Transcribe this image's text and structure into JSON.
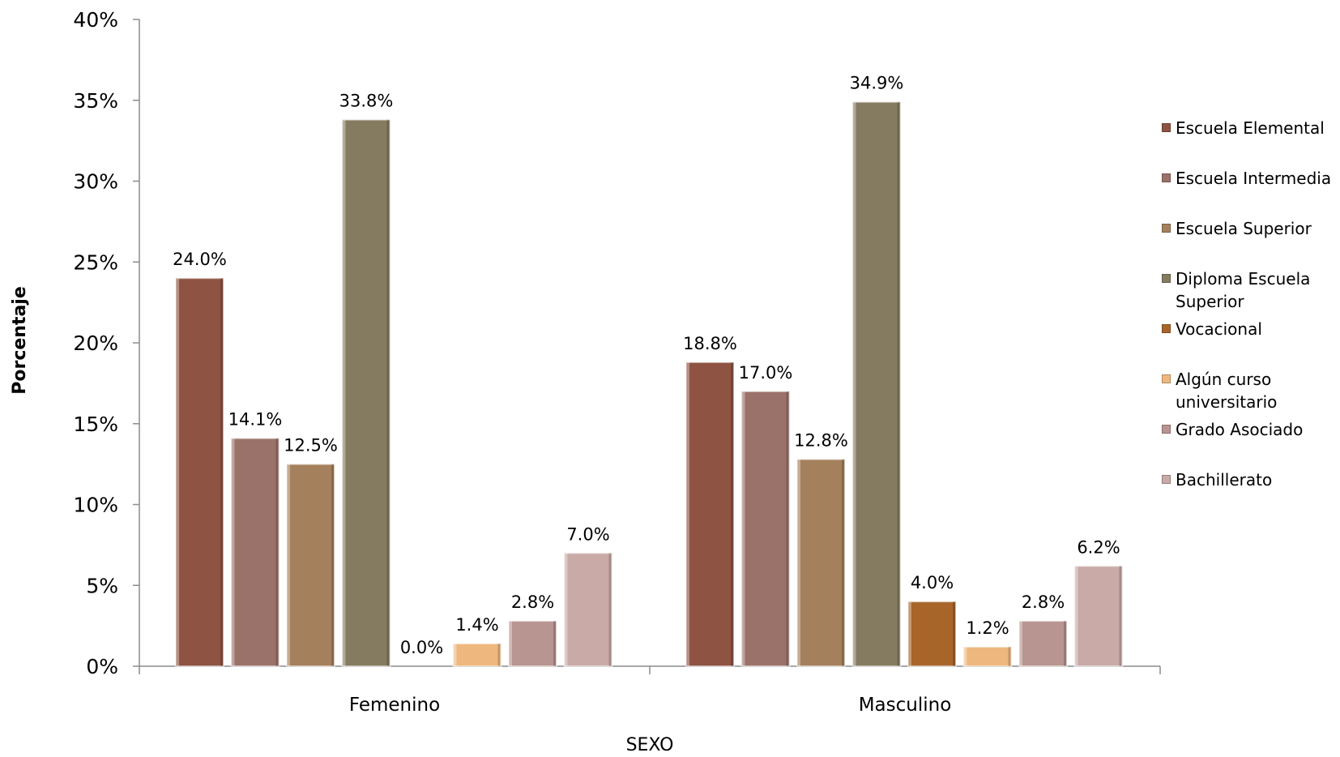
{
  "chart_data": {
    "type": "bar",
    "categories": [
      "Femenino",
      "Masculino"
    ],
    "series": [
      {
        "name": "Escuela Elemental",
        "color": "#8e5342",
        "values": [
          24.0,
          18.8
        ],
        "labels": [
          "24.0%",
          "18.8%"
        ]
      },
      {
        "name": "Escuela Intermedia",
        "color": "#9a7269",
        "values": [
          14.1,
          17.0
        ],
        "labels": [
          "14.1%",
          "17.0%"
        ]
      },
      {
        "name": "Escuela Superior",
        "color": "#a5805c",
        "values": [
          12.5,
          12.8
        ],
        "labels": [
          "12.5%",
          "12.8%"
        ]
      },
      {
        "name": "Diploma Escuela Superior",
        "color": "#857b60",
        "values": [
          33.8,
          34.9
        ],
        "labels": [
          "33.8%",
          "34.9%"
        ]
      },
      {
        "name": "Vocacional",
        "color": "#a8652a",
        "values": [
          0.0,
          4.0
        ],
        "labels": [
          "0.0%",
          "4.0%"
        ]
      },
      {
        "name": "Algún curso universitario",
        "color": "#eeb77e",
        "values": [
          1.4,
          1.2
        ],
        "labels": [
          "1.4%",
          "1.2%"
        ]
      },
      {
        "name": "Grado Asociado",
        "color": "#b89590",
        "values": [
          2.8,
          2.8
        ],
        "labels": [
          "2.8%",
          "2.8%"
        ]
      },
      {
        "name": "Bachillerato",
        "color": "#c9aaa6",
        "values": [
          7.0,
          6.2
        ],
        "labels": [
          "7.0%",
          "6.2%"
        ]
      }
    ],
    "xlabel": "SEXO",
    "ylabel": "Porcentaje",
    "ylim": [
      0,
      40
    ],
    "yticks": [
      "0%",
      "5%",
      "10%",
      "15%",
      "20%",
      "25%",
      "30%",
      "35%",
      "40%"
    ],
    "legend_position": "right",
    "grid": false
  }
}
